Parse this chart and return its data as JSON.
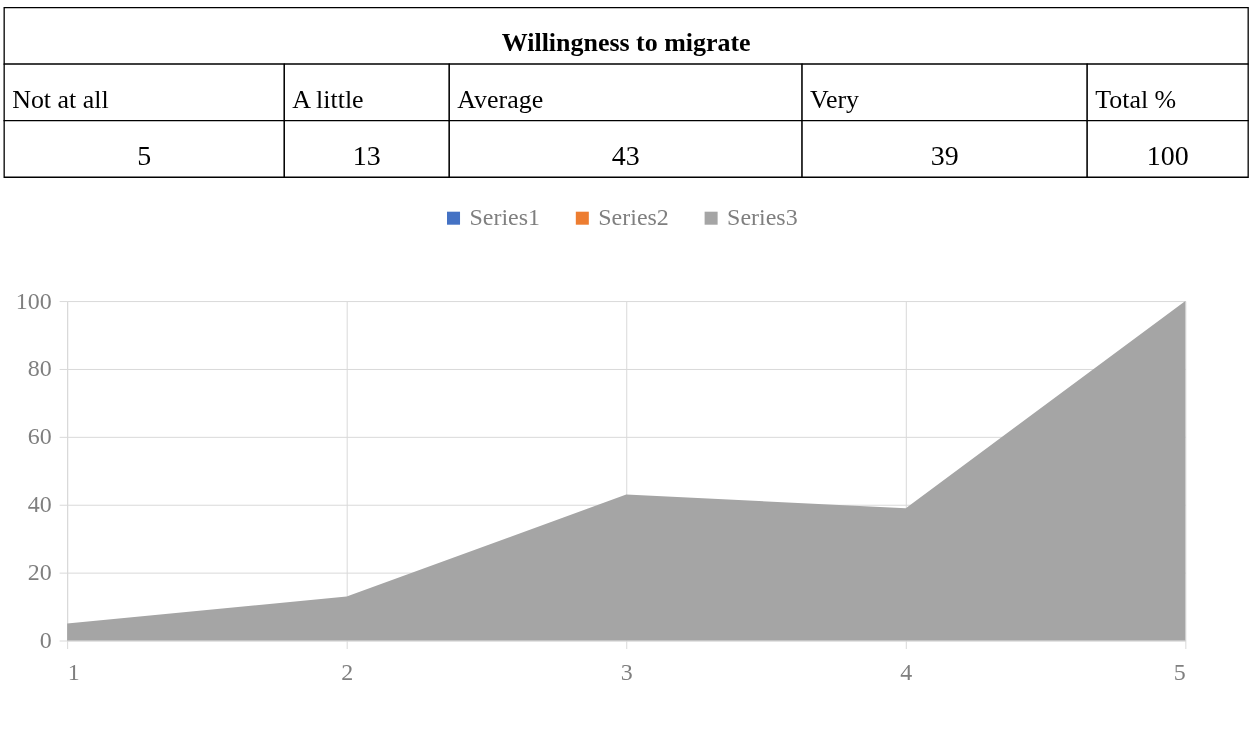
{
  "chart_data": [
    {
      "type": "other",
      "title": "Willingness to migrate",
      "categories": [
        "Not at all",
        "A little",
        "Average",
        "Very",
        "Total %"
      ],
      "values": [
        5,
        13,
        43,
        39,
        100
      ],
      "data_labels": true
    },
    {
      "type": "area",
      "x": [
        1,
        2,
        3,
        4,
        5
      ],
      "xlim": [
        1,
        5
      ],
      "xticks": [
        1,
        2,
        3,
        4,
        5
      ],
      "ylim": [
        0,
        100
      ],
      "yticks": [
        0,
        20,
        40,
        60,
        80,
        100
      ],
      "grid": true,
      "legend": "top",
      "series": [
        {
          "name": "Series1",
          "color": "#4472c4",
          "values": [
            null,
            null,
            null,
            null,
            null
          ]
        },
        {
          "name": "Series2",
          "color": "#ed7d31",
          "values": [
            null,
            null,
            null,
            null,
            null
          ]
        },
        {
          "name": "Series3",
          "color": "#a5a5a5",
          "values": [
            5,
            13,
            43,
            39,
            100
          ]
        }
      ]
    }
  ]
}
